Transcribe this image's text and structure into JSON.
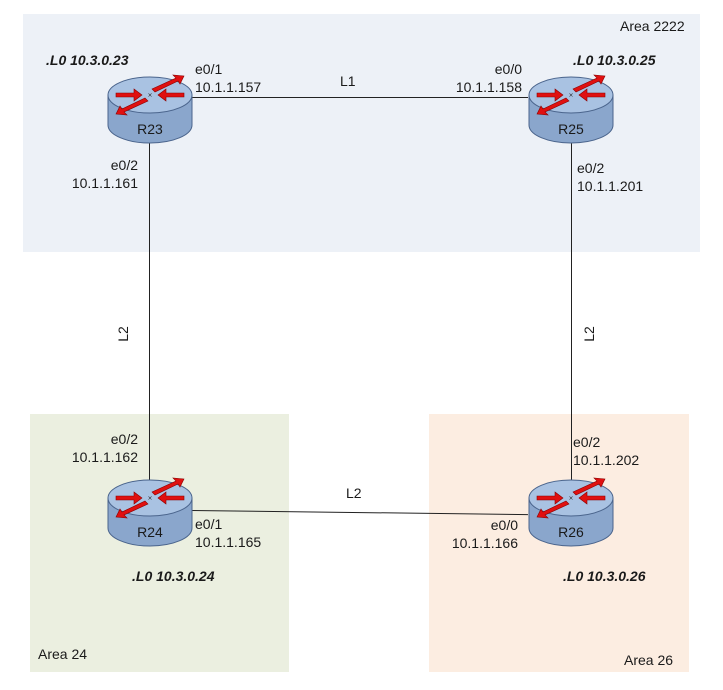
{
  "areas": {
    "top": {
      "label": "Area 2222",
      "color": "#edf1f7"
    },
    "left": {
      "label": "Area 24",
      "color": "#ebefe0"
    },
    "right": {
      "label": "Area 26",
      "color": "#fcede1"
    }
  },
  "routers": {
    "r23": {
      "name": "R23",
      "loopback": ".L0 10.3.0.23"
    },
    "r25": {
      "name": "R25",
      "loopback": ".L0 10.3.0.25"
    },
    "r24": {
      "name": "R24",
      "loopback": ".L0 10.3.0.24"
    },
    "r26": {
      "name": "R26",
      "loopback": ".L0 10.3.0.26"
    }
  },
  "interfaces": {
    "r23_e01": {
      "port": "e0/1",
      "ip": "10.1.1.157"
    },
    "r23_e02": {
      "port": "e0/2",
      "ip": "10.1.1.161"
    },
    "r25_e00": {
      "port": "e0/0",
      "ip": "10.1.1.158"
    },
    "r25_e02": {
      "port": "e0/2",
      "ip": "10.1.1.201"
    },
    "r24_e02": {
      "port": "e0/2",
      "ip": "10.1.1.162"
    },
    "r24_e01": {
      "port": "e0/1",
      "ip": "10.1.1.165"
    },
    "r26_e02": {
      "port": "e0/2",
      "ip": "10.1.1.202"
    },
    "r26_e00": {
      "port": "e0/0",
      "ip": "10.1.1.166"
    }
  },
  "links": {
    "top": "L1",
    "left": "L2",
    "right": "L2",
    "bottom": "L2"
  },
  "colors": {
    "router_body": "#8aa6cc",
    "router_top": "#a9c2e2",
    "arrow": "#e01010"
  }
}
